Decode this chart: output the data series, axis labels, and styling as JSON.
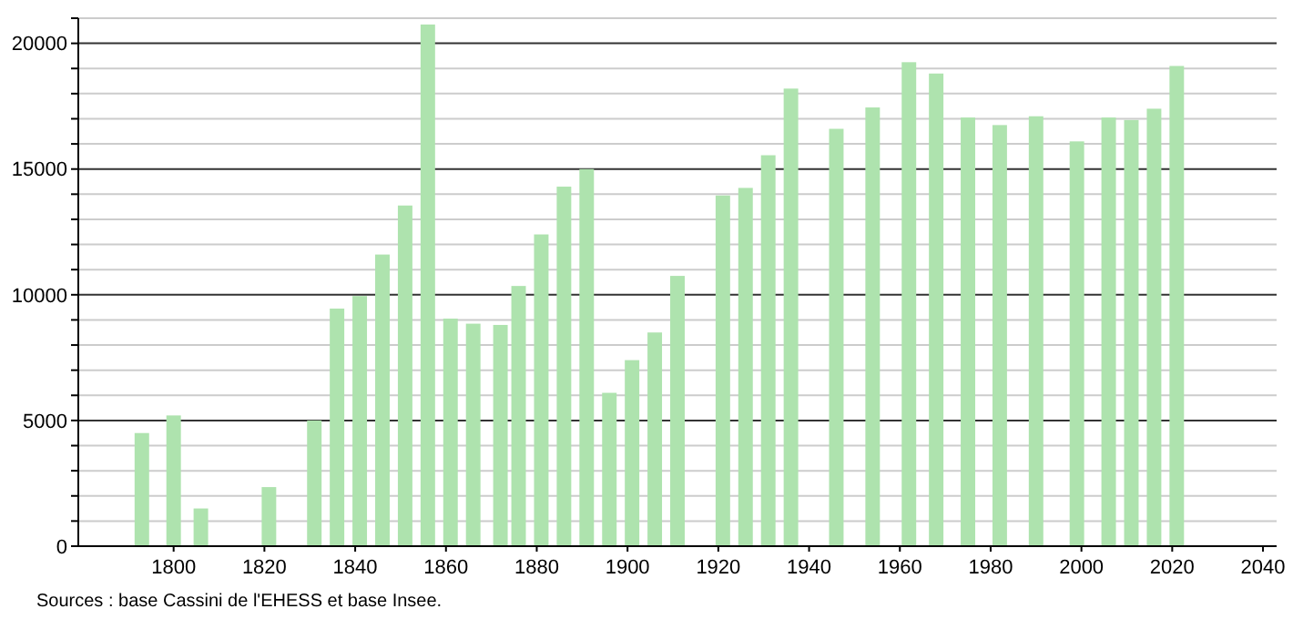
{
  "chart_data": {
    "type": "bar",
    "x": [
      1793,
      1800,
      1806,
      1821,
      1831,
      1836,
      1841,
      1846,
      1851,
      1856,
      1861,
      1866,
      1872,
      1876,
      1881,
      1886,
      1891,
      1896,
      1901,
      1906,
      1911,
      1921,
      1926,
      1931,
      1936,
      1946,
      1954,
      1962,
      1968,
      1975,
      1982,
      1990,
      1999,
      2006,
      2011,
      2016,
      2021
    ],
    "values": [
      4500,
      5200,
      1500,
      2350,
      5000,
      9450,
      9950,
      11600,
      13550,
      20750,
      9050,
      8850,
      8800,
      10350,
      12400,
      14300,
      15000,
      6100,
      7400,
      8500,
      10750,
      13950,
      14250,
      15550,
      18200,
      16600,
      17450,
      19250,
      18800,
      17050,
      16750,
      17100,
      16100,
      17050,
      16950,
      17400,
      19100
    ],
    "color": "#aee3ae",
    "xlim": [
      1779,
      2043
    ],
    "xticks": [
      1800,
      1820,
      1840,
      1860,
      1880,
      1900,
      1920,
      1940,
      1960,
      1980,
      2000,
      2020,
      2040
    ],
    "ylim": [
      0,
      21000
    ],
    "yticks": [
      0,
      {
        "value": 1000,
        "label": null
      },
      {
        "value": 2000,
        "label": null
      },
      {
        "value": 3000,
        "label": null
      },
      {
        "value": 4000,
        "label": null
      },
      5000,
      {
        "value": 6000,
        "label": null
      },
      {
        "value": 7000,
        "label": null
      },
      {
        "value": 8000,
        "label": null
      },
      {
        "value": 9000,
        "label": null
      },
      10000,
      {
        "value": 11000,
        "label": null
      },
      {
        "value": 12000,
        "label": null
      },
      {
        "value": 13000,
        "label": null
      },
      {
        "value": 14000,
        "label": null
      },
      15000,
      {
        "value": 16000,
        "label": null
      },
      {
        "value": 17000,
        "label": null
      },
      {
        "value": 18000,
        "label": null
      },
      {
        "value": 19000,
        "label": null
      },
      20000,
      {
        "value": 21000,
        "label": null
      }
    ],
    "grid": "y",
    "annotations": [
      "Sources : base Cassini de l'EHESS et base Insee."
    ]
  }
}
